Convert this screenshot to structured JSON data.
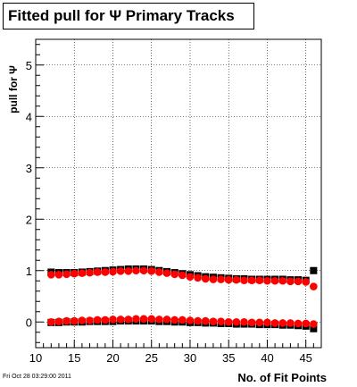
{
  "title": "Fitted pull for Ψ Primary Tracks",
  "footer": "Fri Oct 28 03:29:00 2011",
  "chart_data": {
    "type": "scatter",
    "title": "Fitted pull for Ψ Primary Tracks",
    "xlabel": "No. of Fit Points",
    "ylabel": "pull for Ψ",
    "xlim": [
      10,
      47
    ],
    "ylim": [
      -0.5,
      5.5
    ],
    "xticks": [
      10,
      15,
      20,
      25,
      30,
      35,
      40,
      45
    ],
    "yticks": [
      0,
      1,
      2,
      3,
      4,
      5
    ],
    "grid": true,
    "series": [
      {
        "color": "#000000",
        "marker": "square",
        "x": [
          12,
          13,
          14,
          15,
          16,
          17,
          18,
          19,
          20,
          21,
          22,
          23,
          24,
          25,
          26,
          27,
          28,
          29,
          30,
          31,
          32,
          33,
          34,
          35,
          36,
          37,
          38,
          39,
          40,
          41,
          42,
          43,
          44,
          45,
          46
        ],
        "y": [
          0.97,
          0.96,
          0.96,
          0.96,
          0.97,
          0.98,
          0.99,
          1.0,
          1.01,
          1.02,
          1.03,
          1.03,
          1.03,
          1.02,
          1.0,
          0.98,
          0.96,
          0.94,
          0.92,
          0.9,
          0.88,
          0.87,
          0.86,
          0.85,
          0.84,
          0.84,
          0.83,
          0.83,
          0.83,
          0.83,
          0.83,
          0.82,
          0.82,
          0.81,
          1.0
        ]
      },
      {
        "color": "#ff0000",
        "marker": "circle",
        "x": [
          12,
          13,
          14,
          15,
          16,
          17,
          18,
          19,
          20,
          21,
          22,
          23,
          24,
          25,
          26,
          27,
          28,
          29,
          30,
          31,
          32,
          33,
          34,
          35,
          36,
          37,
          38,
          39,
          40,
          41,
          42,
          43,
          44,
          45,
          46
        ],
        "y": [
          0.92,
          0.92,
          0.93,
          0.94,
          0.95,
          0.96,
          0.97,
          0.97,
          0.98,
          0.99,
          0.99,
          1.0,
          1.0,
          0.99,
          0.97,
          0.95,
          0.93,
          0.91,
          0.88,
          0.86,
          0.84,
          0.83,
          0.83,
          0.82,
          0.82,
          0.81,
          0.81,
          0.81,
          0.8,
          0.8,
          0.8,
          0.79,
          0.79,
          0.78,
          0.69
        ]
      },
      {
        "color": "#000000",
        "marker": "square",
        "x": [
          12,
          13,
          14,
          15,
          16,
          17,
          18,
          19,
          20,
          21,
          22,
          23,
          24,
          25,
          26,
          27,
          28,
          29,
          30,
          31,
          32,
          33,
          34,
          35,
          36,
          37,
          38,
          39,
          40,
          41,
          42,
          43,
          44,
          45,
          46
        ],
        "y": [
          -0.01,
          -0.01,
          0.0,
          0.0,
          0.0,
          0.01,
          0.01,
          0.01,
          0.01,
          0.02,
          0.02,
          0.02,
          0.02,
          0.02,
          0.01,
          0.01,
          0.0,
          0.0,
          -0.01,
          -0.01,
          -0.02,
          -0.02,
          -0.03,
          -0.03,
          -0.04,
          -0.04,
          -0.04,
          -0.05,
          -0.05,
          -0.05,
          -0.06,
          -0.06,
          -0.07,
          -0.08,
          -0.13
        ]
      },
      {
        "color": "#ff0000",
        "marker": "circle",
        "x": [
          12,
          13,
          14,
          15,
          16,
          17,
          18,
          19,
          20,
          21,
          22,
          23,
          24,
          25,
          26,
          27,
          28,
          29,
          30,
          31,
          32,
          33,
          34,
          35,
          36,
          37,
          38,
          39,
          40,
          41,
          42,
          43,
          44,
          45,
          46
        ],
        "y": [
          0.0,
          0.01,
          0.02,
          0.02,
          0.03,
          0.03,
          0.04,
          0.04,
          0.05,
          0.05,
          0.05,
          0.06,
          0.06,
          0.06,
          0.05,
          0.05,
          0.04,
          0.04,
          0.03,
          0.02,
          0.02,
          0.01,
          0.01,
          0.0,
          0.0,
          0.0,
          -0.01,
          -0.01,
          -0.01,
          -0.02,
          -0.02,
          -0.02,
          -0.03,
          -0.03,
          -0.04
        ]
      }
    ]
  }
}
